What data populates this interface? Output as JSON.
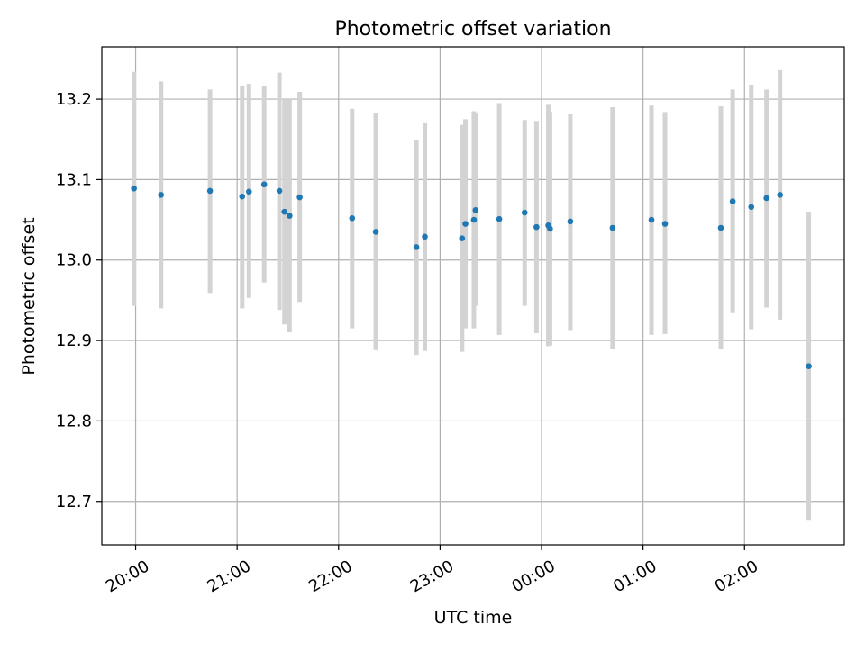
{
  "chart_data": {
    "type": "scatter",
    "title": "Photometric offset variation",
    "xlabel": "UTC time",
    "ylabel": "Photometric offset",
    "x_ticks": [
      "20:00",
      "21:00",
      "22:00",
      "23:00",
      "00:00",
      "01:00",
      "02:00"
    ],
    "y_ticks": [
      "12.7",
      "12.8",
      "12.9",
      "13.0",
      "13.1",
      "13.2"
    ],
    "xlim": [
      "19:40",
      "26:59"
    ],
    "ylim": [
      12.646,
      13.265
    ],
    "grid": true,
    "legend": "none",
    "x_axis_unit": "UTC time (hh:mm); times past midnight written as 24:xx, 25:xx, 26:xx",
    "points": [
      {
        "x": "19:59",
        "y": 13.089,
        "y_low": 12.943,
        "y_high": 13.234
      },
      {
        "x": "20:15",
        "y": 13.081,
        "y_low": 12.94,
        "y_high": 13.222
      },
      {
        "x": "20:44",
        "y": 13.086,
        "y_low": 12.959,
        "y_high": 13.212
      },
      {
        "x": "21:03",
        "y": 13.079,
        "y_low": 12.94,
        "y_high": 13.217
      },
      {
        "x": "21:07",
        "y": 13.085,
        "y_low": 12.953,
        "y_high": 13.219
      },
      {
        "x": "21:16",
        "y": 13.094,
        "y_low": 12.972,
        "y_high": 13.216
      },
      {
        "x": "21:25",
        "y": 13.086,
        "y_low": 12.938,
        "y_high": 13.233
      },
      {
        "x": "21:28",
        "y": 13.06,
        "y_low": 12.92,
        "y_high": 13.2
      },
      {
        "x": "21:31",
        "y": 13.055,
        "y_low": 12.91,
        "y_high": 13.2
      },
      {
        "x": "21:37",
        "y": 13.078,
        "y_low": 12.948,
        "y_high": 13.209
      },
      {
        "x": "22:08",
        "y": 13.052,
        "y_low": 12.915,
        "y_high": 13.188
      },
      {
        "x": "22:22",
        "y": 13.035,
        "y_low": 12.888,
        "y_high": 13.183
      },
      {
        "x": "22:46",
        "y": 13.016,
        "y_low": 12.882,
        "y_high": 13.149
      },
      {
        "x": "22:51",
        "y": 13.029,
        "y_low": 12.887,
        "y_high": 13.17
      },
      {
        "x": "23:13",
        "y": 13.027,
        "y_low": 12.886,
        "y_high": 13.168
      },
      {
        "x": "23:15",
        "y": 13.045,
        "y_low": 12.915,
        "y_high": 13.175
      },
      {
        "x": "23:20",
        "y": 13.05,
        "y_low": 12.915,
        "y_high": 13.185
      },
      {
        "x": "23:21",
        "y": 13.062,
        "y_low": 12.943,
        "y_high": 13.182
      },
      {
        "x": "23:35",
        "y": 13.051,
        "y_low": 12.907,
        "y_high": 13.195
      },
      {
        "x": "23:50",
        "y": 13.059,
        "y_low": 12.943,
        "y_high": 13.174
      },
      {
        "x": "23:57",
        "y": 13.041,
        "y_low": 12.909,
        "y_high": 13.173
      },
      {
        "x": "24:04",
        "y": 13.043,
        "y_low": 12.893,
        "y_high": 13.193
      },
      {
        "x": "24:05",
        "y": 13.039,
        "y_low": 12.894,
        "y_high": 13.184
      },
      {
        "x": "24:17",
        "y": 13.048,
        "y_low": 12.913,
        "y_high": 13.181
      },
      {
        "x": "24:42",
        "y": 13.04,
        "y_low": 12.89,
        "y_high": 13.19
      },
      {
        "x": "25:05",
        "y": 13.05,
        "y_low": 12.907,
        "y_high": 13.192
      },
      {
        "x": "25:13",
        "y": 13.045,
        "y_low": 12.908,
        "y_high": 13.184
      },
      {
        "x": "25:46",
        "y": 13.04,
        "y_low": 12.889,
        "y_high": 13.191
      },
      {
        "x": "25:53",
        "y": 13.073,
        "y_low": 12.934,
        "y_high": 13.212
      },
      {
        "x": "26:04",
        "y": 13.066,
        "y_low": 12.914,
        "y_high": 13.218
      },
      {
        "x": "26:13",
        "y": 13.077,
        "y_low": 12.941,
        "y_high": 13.212
      },
      {
        "x": "26:21",
        "y": 13.081,
        "y_low": 12.926,
        "y_high": 13.236
      },
      {
        "x": "26:38",
        "y": 12.868,
        "y_low": 12.677,
        "y_high": 13.06
      }
    ],
    "colors": {
      "marker": "#1f77b4",
      "errorbar": "#d3d3d3",
      "grid": "#b0b0b0",
      "axes": "#000000"
    }
  }
}
